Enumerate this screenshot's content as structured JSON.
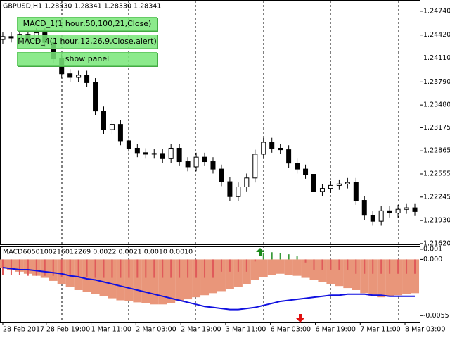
{
  "buttons": [
    "MACD_1(1 hour,50,100,21,Close)",
    "MACD_4(1 hour,12,26,9,Close,alert)",
    "show panel"
  ],
  "chart_data": [
    {
      "type": "candlestick",
      "title": "GBPUSD,H1  1.28330 1.28341 1.28330 1.28341",
      "up_color": "#ffffff",
      "down_color": "#000000",
      "open": [
        1.2436,
        1.244,
        1.2438,
        1.2443,
        1.2435,
        1.2445,
        1.2432,
        1.241,
        1.239,
        1.2385,
        1.2388,
        1.2378,
        1.234,
        1.2315,
        1.2322,
        1.23,
        1.229,
        1.2284,
        1.2282,
        1.2283,
        1.2276,
        1.229,
        1.2272,
        1.2265,
        1.2278,
        1.2272,
        1.2262,
        1.2245,
        1.2225,
        1.2238,
        1.225,
        1.2282,
        1.2298,
        1.229,
        1.2288,
        1.227,
        1.2262,
        1.2255,
        1.2232,
        1.2236,
        1.224,
        1.2242,
        1.2244,
        1.222,
        1.22,
        1.2192,
        1.2206,
        1.2203,
        1.2208,
        1.221
      ],
      "high": [
        1.2446,
        1.2446,
        1.2449,
        1.2449,
        1.2451,
        1.2451,
        1.2438,
        1.2416,
        1.2396,
        1.2394,
        1.2394,
        1.2384,
        1.2346,
        1.2328,
        1.2328,
        1.2306,
        1.2296,
        1.229,
        1.2289,
        1.2289,
        1.2296,
        1.2296,
        1.2278,
        1.2284,
        1.2284,
        1.2278,
        1.2268,
        1.2251,
        1.2244,
        1.2256,
        1.2288,
        1.2304,
        1.2304,
        1.2296,
        1.2294,
        1.2276,
        1.2268,
        1.2261,
        1.2242,
        1.2246,
        1.2248,
        1.225,
        1.225,
        1.2226,
        1.2206,
        1.2212,
        1.2212,
        1.2214,
        1.2216,
        1.2216
      ],
      "low": [
        1.243,
        1.2432,
        1.2432,
        1.2429,
        1.2429,
        1.2426,
        1.2404,
        1.2384,
        1.2379,
        1.2379,
        1.2372,
        1.2334,
        1.2309,
        1.2309,
        1.2294,
        1.2284,
        1.2278,
        1.2276,
        1.2276,
        1.227,
        1.227,
        1.2266,
        1.2259,
        1.2259,
        1.2266,
        1.2256,
        1.2239,
        1.2219,
        1.2219,
        1.2232,
        1.2244,
        1.2276,
        1.2284,
        1.2282,
        1.2264,
        1.2256,
        1.2249,
        1.2226,
        1.2226,
        1.223,
        1.2234,
        1.2236,
        1.2214,
        1.2194,
        1.2186,
        1.2186,
        1.2197,
        1.2197,
        1.2202,
        1.2199
      ],
      "close": [
        1.244,
        1.2438,
        1.2443,
        1.2435,
        1.2445,
        1.2432,
        1.241,
        1.239,
        1.2385,
        1.2388,
        1.2378,
        1.234,
        1.2315,
        1.2322,
        1.23,
        1.229,
        1.2284,
        1.2282,
        1.2283,
        1.2276,
        1.229,
        1.2272,
        1.2265,
        1.2278,
        1.2272,
        1.2262,
        1.2245,
        1.2225,
        1.2238,
        1.225,
        1.2282,
        1.2298,
        1.229,
        1.2288,
        1.227,
        1.2262,
        1.2255,
        1.2232,
        1.2236,
        1.224,
        1.2242,
        1.2244,
        1.222,
        1.22,
        1.2192,
        1.2206,
        1.2203,
        1.2208,
        1.221,
        1.2205
      ],
      "xlim": [
        -0.333,
        49.667
      ],
      "ylim": [
        1.216,
        1.2489
      ],
      "yticks": [
        {
          "value": 1.2474,
          "label": "1.24740"
        },
        {
          "value": 1.2442,
          "label": "1.24420"
        },
        {
          "value": 1.2411,
          "label": "1.24110"
        },
        {
          "value": 1.2379,
          "label": "1.23790"
        },
        {
          "value": 1.2348,
          "label": "1.23480"
        },
        {
          "value": 1.23175,
          "label": "1.23175"
        },
        {
          "value": 1.22865,
          "label": "1.22865"
        },
        {
          "value": 1.22555,
          "label": "1.22555"
        },
        {
          "value": 1.22245,
          "label": "1.22245"
        },
        {
          "value": 1.2193,
          "label": "1.21930"
        },
        {
          "value": 1.2162,
          "label": "1.21620"
        }
      ]
    },
    {
      "type": "macd",
      "title": "MACD6050100216012269 0.0022 0.0021 0.0010 0.0010",
      "xlim": [
        -0.333,
        49.667
      ],
      "ylim": [
        -0.0061,
        0.0012
      ],
      "yticks": [
        0.001,
        {
          "value": 0,
          "label": "0.000"
        },
        -0.0055
      ],
      "xticks": [
        {
          "value": 0,
          "label": "28 Feb 2017"
        },
        {
          "value": 5.17,
          "label": "28 Feb 19:00"
        },
        {
          "value": 10.5,
          "label": "1 Mar 11:00"
        },
        {
          "value": 15.83,
          "label": "2 Mar 03:00"
        },
        {
          "value": 21.17,
          "label": "2 Mar 19:00"
        },
        {
          "value": 26.5,
          "label": "3 Mar 11:00"
        },
        {
          "value": 31.83,
          "label": "6 Mar 03:00"
        },
        {
          "value": 37.17,
          "label": "6 Mar 19:00"
        },
        {
          "value": 42.5,
          "label": "7 Mar 11:00"
        },
        {
          "value": 47.83,
          "label": "8 Mar 03:00"
        }
      ],
      "series": [
        {
          "style": "area",
          "color": "#e9967a",
          "values": [
            -0.0008,
            -0.001,
            -0.0012,
            -0.0014,
            -0.0016,
            -0.0018,
            -0.0021,
            -0.0024,
            -0.0027,
            -0.003,
            -0.0032,
            -0.0034,
            -0.0036,
            -0.0038,
            -0.004,
            -0.0041,
            -0.0042,
            -0.0043,
            -0.0044,
            -0.0044,
            -0.0043,
            -0.0041,
            -0.0039,
            -0.0037,
            -0.0035,
            -0.0033,
            -0.0031,
            -0.0029,
            -0.0027,
            -0.0024,
            -0.002,
            -0.0017,
            -0.0015,
            -0.0014,
            -0.0015,
            -0.0016,
            -0.0018,
            -0.002,
            -0.0022,
            -0.0024,
            -0.0026,
            -0.0028,
            -0.003,
            -0.0033,
            -0.0036,
            -0.0037,
            -0.0036,
            -0.0035,
            -0.0034,
            -0.0033
          ]
        },
        {
          "style": "bar",
          "color": "#e05a5a",
          "up_color": "#3a9a3a",
          "values": [
            -0.0015,
            -0.0015,
            -0.0015,
            -0.0016,
            -0.0016,
            -0.0016,
            -0.0016,
            -0.0017,
            -0.0017,
            -0.0017,
            -0.0017,
            -0.0018,
            -0.0018,
            -0.0018,
            -0.0018,
            -0.0018,
            -0.0018,
            -0.0018,
            -0.0018,
            -0.0018,
            -0.0018,
            -0.0018,
            -0.0018,
            -0.0018,
            -0.0018,
            -0.0018,
            -0.0012,
            -0.0012,
            -0.0012,
            -0.0012,
            -0.0002,
            0.0006,
            0.0007,
            0.0006,
            0.0005,
            0.0003,
            -0.0003,
            -0.001,
            -0.001,
            -0.001,
            -0.001,
            -0.001,
            -0.0014,
            -0.0014,
            -0.0014,
            -0.0014,
            -0.0014,
            -0.0014,
            -0.0014,
            -0.0014
          ]
        },
        {
          "style": "line",
          "color": "#1010e0",
          "values": [
            -0.0008,
            -0.0009,
            -0.001,
            -0.001,
            -0.0011,
            -0.0012,
            -0.0013,
            -0.0014,
            -0.0016,
            -0.0017,
            -0.0019,
            -0.002,
            -0.0022,
            -0.0024,
            -0.0026,
            -0.0028,
            -0.003,
            -0.0032,
            -0.0034,
            -0.0036,
            -0.0038,
            -0.004,
            -0.0042,
            -0.0044,
            -0.0046,
            -0.0047,
            -0.0048,
            -0.0049,
            -0.0049,
            -0.0048,
            -0.0047,
            -0.0045,
            -0.0043,
            -0.0041,
            -0.004,
            -0.0039,
            -0.0038,
            -0.0037,
            -0.0036,
            -0.0035,
            -0.0035,
            -0.0034,
            -0.0034,
            -0.0034,
            -0.0035,
            -0.0035,
            -0.0036,
            -0.0036,
            -0.0036,
            -0.0036
          ]
        }
      ]
    }
  ]
}
